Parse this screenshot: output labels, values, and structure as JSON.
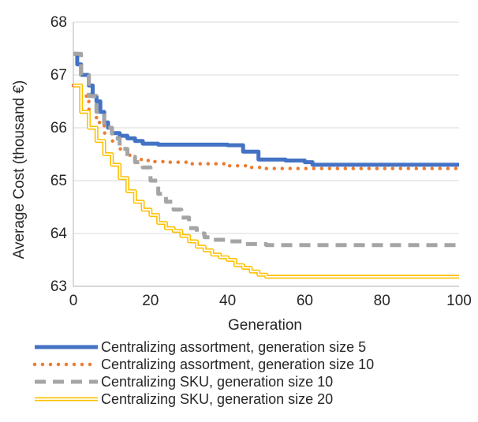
{
  "chart_data": {
    "type": "line",
    "title": "",
    "xlabel": "Generation",
    "ylabel": "Average Cost (thousand €)",
    "xlim": [
      0,
      100
    ],
    "ylim": [
      63,
      68
    ],
    "xticks": [
      0,
      20,
      40,
      60,
      80,
      100
    ],
    "yticks": [
      63,
      64,
      65,
      66,
      67,
      68
    ],
    "grid": true,
    "legend_position": "bottom",
    "series": [
      {
        "name": "Centralizing assortment, generation size 5",
        "color": "#4472C4",
        "style": "solid",
        "points": [
          [
            0,
            67.4
          ],
          [
            1,
            67.2
          ],
          [
            2,
            67.0
          ],
          [
            3,
            67.0
          ],
          [
            4,
            66.8
          ],
          [
            5,
            66.6
          ],
          [
            6,
            66.5
          ],
          [
            7,
            66.3
          ],
          [
            8,
            66.1
          ],
          [
            9,
            66.0
          ],
          [
            10,
            65.9
          ],
          [
            12,
            65.85
          ],
          [
            14,
            65.8
          ],
          [
            16,
            65.75
          ],
          [
            18,
            65.7
          ],
          [
            22,
            65.68
          ],
          [
            30,
            65.68
          ],
          [
            40,
            65.67
          ],
          [
            44,
            65.55
          ],
          [
            48,
            65.4
          ],
          [
            55,
            65.38
          ],
          [
            60,
            65.35
          ],
          [
            62,
            65.3
          ],
          [
            70,
            65.3
          ],
          [
            80,
            65.3
          ],
          [
            100,
            65.3
          ]
        ]
      },
      {
        "name": "Centralizing assortment, generation size 10",
        "color": "#ED7D31",
        "style": "dotted",
        "points": [
          [
            0,
            66.8
          ],
          [
            2,
            66.6
          ],
          [
            4,
            66.35
          ],
          [
            6,
            66.1
          ],
          [
            8,
            65.9
          ],
          [
            10,
            65.75
          ],
          [
            12,
            65.6
          ],
          [
            14,
            65.48
          ],
          [
            16,
            65.4
          ],
          [
            18,
            65.38
          ],
          [
            20,
            65.36
          ],
          [
            25,
            65.35
          ],
          [
            30,
            65.32
          ],
          [
            40,
            65.28
          ],
          [
            45,
            65.25
          ],
          [
            50,
            65.23
          ],
          [
            60,
            65.23
          ],
          [
            80,
            65.23
          ],
          [
            100,
            65.23
          ]
        ]
      },
      {
        "name": "Centralizing SKU, generation size 10",
        "color": "#A5A5A5",
        "style": "dashed",
        "points": [
          [
            0,
            67.4
          ],
          [
            2,
            67.0
          ],
          [
            4,
            66.6
          ],
          [
            6,
            66.3
          ],
          [
            8,
            66.0
          ],
          [
            10,
            65.8
          ],
          [
            12,
            65.6
          ],
          [
            14,
            65.45
          ],
          [
            16,
            65.35
          ],
          [
            18,
            65.25
          ],
          [
            20,
            65.0
          ],
          [
            22,
            64.75
          ],
          [
            24,
            64.6
          ],
          [
            26,
            64.45
          ],
          [
            28,
            64.3
          ],
          [
            30,
            64.1
          ],
          [
            32,
            64.0
          ],
          [
            34,
            63.93
          ],
          [
            36,
            63.88
          ],
          [
            40,
            63.85
          ],
          [
            44,
            63.8
          ],
          [
            48,
            63.8
          ],
          [
            50,
            63.78
          ],
          [
            60,
            63.78
          ],
          [
            80,
            63.78
          ],
          [
            100,
            63.78
          ]
        ]
      },
      {
        "name": "Centralizing SKU, generation size 20",
        "color": "#FFC000",
        "style": "double",
        "points": [
          [
            0,
            66.8
          ],
          [
            2,
            66.3
          ],
          [
            4,
            66.0
          ],
          [
            6,
            65.75
          ],
          [
            8,
            65.5
          ],
          [
            10,
            65.3
          ],
          [
            12,
            65.05
          ],
          [
            14,
            64.8
          ],
          [
            16,
            64.6
          ],
          [
            18,
            64.45
          ],
          [
            20,
            64.35
          ],
          [
            22,
            64.2
          ],
          [
            24,
            64.1
          ],
          [
            26,
            64.05
          ],
          [
            28,
            63.95
          ],
          [
            30,
            63.85
          ],
          [
            32,
            63.75
          ],
          [
            34,
            63.68
          ],
          [
            36,
            63.6
          ],
          [
            38,
            63.55
          ],
          [
            40,
            63.5
          ],
          [
            42,
            63.4
          ],
          [
            44,
            63.35
          ],
          [
            46,
            63.28
          ],
          [
            48,
            63.22
          ],
          [
            50,
            63.18
          ],
          [
            60,
            63.18
          ],
          [
            80,
            63.18
          ],
          [
            100,
            63.18
          ]
        ]
      }
    ]
  }
}
